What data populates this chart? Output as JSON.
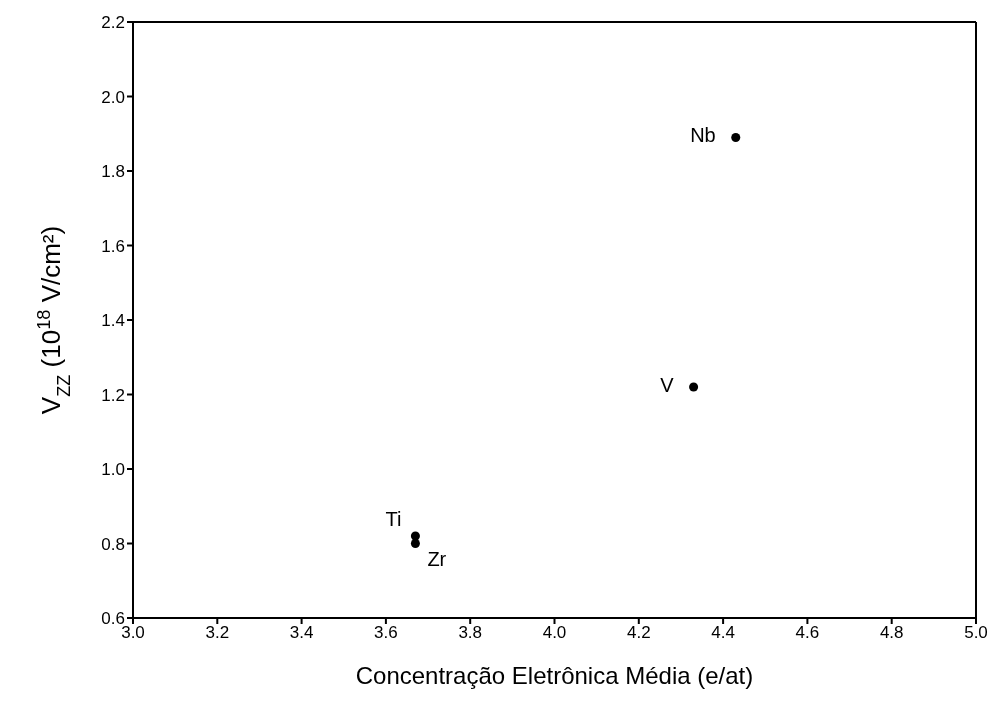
{
  "chart_data": {
    "type": "scatter",
    "xlabel": "Concentração Eletrônica Média (e/at)",
    "ylabel": "V$_{ZZ}$ (10$^{18}$ V/cm²)",
    "x": [
      3.67,
      3.67,
      4.33,
      4.43
    ],
    "series": [
      {
        "color": "#000000",
        "values": [
          0.82,
          0.8,
          1.22,
          1.89
        ]
      }
    ],
    "xlim": [
      3.0,
      5.0
    ],
    "xticks": [
      {
        "value": 3,
        "label": "3.0"
      },
      3.2,
      3.4,
      3.6,
      3.8,
      {
        "value": 4,
        "label": "4.0"
      },
      4.2,
      4.4,
      4.6,
      4.8,
      {
        "value": 5,
        "label": "5.0"
      }
    ],
    "ylim": [
      0.6,
      2.2
    ],
    "yticks": [
      0.6,
      0.8,
      {
        "value": 1,
        "label": "1.0"
      },
      1.2,
      1.4,
      1.6,
      1.8,
      {
        "value": 2,
        "label": "2.0"
      },
      2.2
    ],
    "marker": "circle",
    "grid": false,
    "legend": false,
    "annotations": [
      {
        "text": "Ti",
        "x": 3.67,
        "y": 0.82
      },
      {
        "text": "Zr",
        "x": 3.67,
        "y": 0.8
      },
      {
        "text": "V",
        "x": 4.33,
        "y": 1.22
      },
      {
        "text": "Nb",
        "x": 4.43,
        "y": 1.89
      }
    ]
  }
}
